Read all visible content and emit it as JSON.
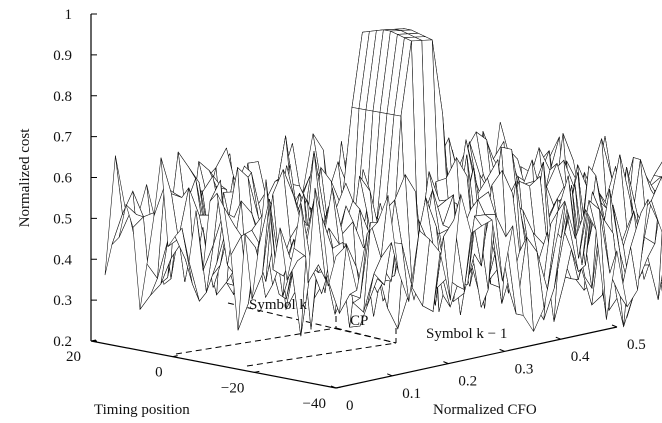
{
  "chart_data": {
    "type": "surface",
    "ylabel": "Normalized cost",
    "xlabel": "Timing position",
    "zlabel_axis": "Normalized CFO",
    "z_axis_ticks": [
      "0.2",
      "0.3",
      "0.4",
      "0.5",
      "0.6",
      "0.7",
      "0.8",
      "0.9",
      "1"
    ],
    "timing_ticks": [
      "20",
      "0",
      "−20",
      "−40"
    ],
    "cfo_ticks": [
      "0",
      "0.1",
      "0.2",
      "0.3",
      "0.4",
      "0.5"
    ],
    "zlim": [
      0.2,
      1
    ],
    "timing_range": [
      20,
      -40
    ],
    "cfo_range": [
      0,
      0.5
    ],
    "surface": {
      "baseline": 0.5,
      "noise_range": [
        0.3,
        0.65
      ],
      "peak_value": 1.0,
      "peak_timing_range": [
        -12,
        0
      ],
      "peak_cfo": 0.2
    },
    "annotations": {
      "symbol_k": "Symbol k",
      "cp": "CP",
      "symbol_k_minus_1": "Symbol k − 1"
    }
  }
}
